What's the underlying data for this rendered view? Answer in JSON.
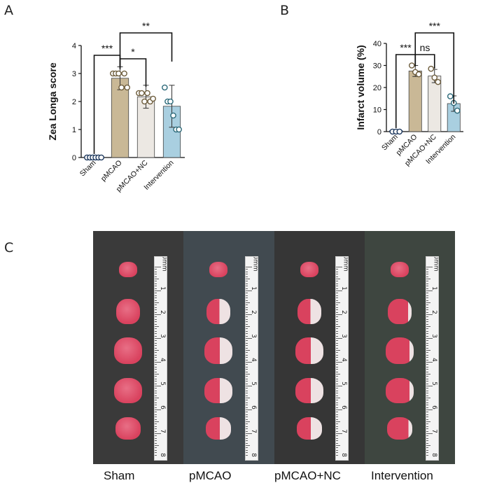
{
  "panel_letters": {
    "a": "A",
    "b": "B",
    "c": "C"
  },
  "chart_data": [
    {
      "type": "bar",
      "ylabel": "Zea Longa score",
      "ylim": [
        0,
        4
      ],
      "yticks": [
        0,
        1,
        2,
        3,
        4
      ],
      "categories": [
        "Sham",
        "pMCAO",
        "pMCAO+NC",
        "Intervention"
      ],
      "values": [
        0,
        2.83,
        2.17,
        1.83
      ],
      "errors": [
        0,
        0.41,
        0.41,
        0.75
      ],
      "points": [
        [
          0,
          0,
          0,
          0,
          0,
          0
        ],
        [
          3,
          3,
          3,
          2.5,
          3,
          2.5
        ],
        [
          2.3,
          2.3,
          2.0,
          2.3,
          2.0,
          2.1
        ],
        [
          2.5,
          2.0,
          2.0,
          1.5,
          1.0,
          1.0
        ]
      ],
      "colors": [
        "#1f3a5f",
        "#c9b896",
        "#ece8e3",
        "#a9cfe0"
      ],
      "significance": [
        {
          "from": 0,
          "to": 1,
          "label": "***"
        },
        {
          "from": 1,
          "to": 2,
          "label": "*"
        },
        {
          "from": 1,
          "to": 3,
          "label": "**"
        }
      ]
    },
    {
      "type": "bar",
      "ylabel": "Infarct volume (%)",
      "ylim": [
        0,
        40
      ],
      "yticks": [
        0,
        10,
        20,
        30,
        40
      ],
      "categories": [
        "Sham",
        "pMCAO",
        "pMCAO+NC",
        "Intervention"
      ],
      "values": [
        0,
        27.5,
        25.2,
        12.7
      ],
      "errors": [
        0,
        2.5,
        3.0,
        3.5
      ],
      "points": [
        [
          0,
          0,
          0
        ],
        [
          30,
          27,
          26
        ],
        [
          28.5,
          24.5,
          22.5
        ],
        [
          16,
          13,
          9.5
        ]
      ],
      "colors": [
        "#1f3a5f",
        "#c9b896",
        "#ece8e3",
        "#a9cfe0"
      ],
      "significance": [
        {
          "from": 0,
          "to": 1,
          "label": "***"
        },
        {
          "from": 1,
          "to": 2,
          "label": "ns"
        },
        {
          "from": 1,
          "to": 3,
          "label": "***"
        }
      ]
    }
  ],
  "photo": {
    "groups": [
      "Sham",
      "pMCAO",
      "pMCAO+NC",
      "Intervention"
    ],
    "ruler_label": "0mm",
    "ruler_numbers": [
      "1",
      "2",
      "3",
      "4",
      "5",
      "6",
      "7",
      "8"
    ],
    "background_colors": [
      "#3a3a3a",
      "#414a50",
      "#363636",
      "#3e4640"
    ],
    "red_color": "#d9425e",
    "pale_color": "#eee2e3",
    "infarct_fraction": [
      0,
      0.45,
      0.45,
      0.15
    ]
  }
}
